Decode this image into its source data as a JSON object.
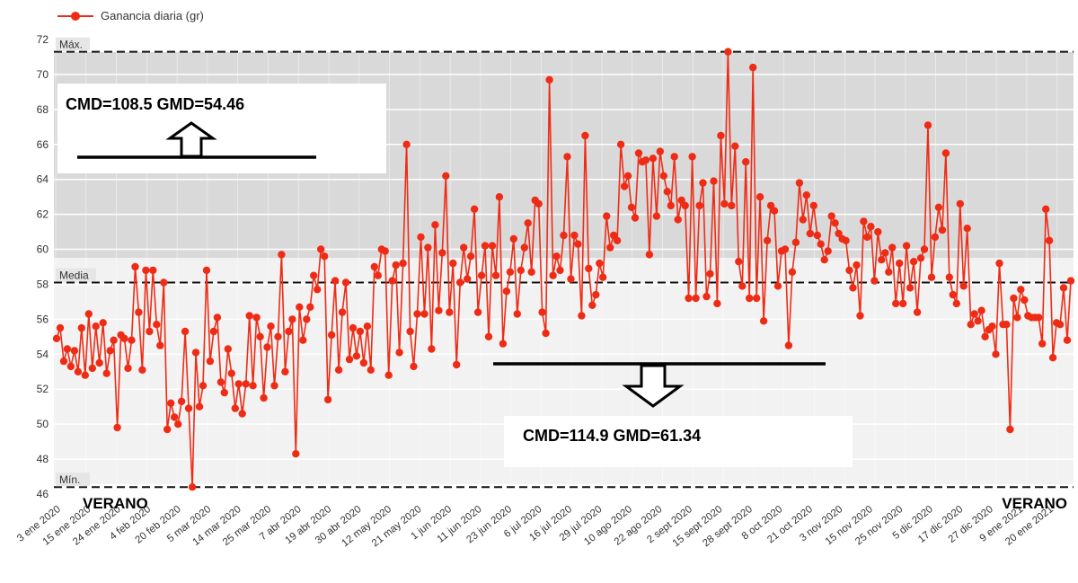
{
  "chart_data": {
    "type": "line",
    "legend": "Ganancia diaria (gr)",
    "legend_position": "top-left",
    "grid": true,
    "ylim": [
      46,
      72
    ],
    "yticks": [
      46,
      48,
      50,
      52,
      54,
      56,
      58,
      60,
      62,
      64,
      66,
      68,
      70,
      72
    ],
    "x_tick_labels": [
      "3 ene 2020",
      "15 ene 2020",
      "24 ene 2020",
      "4 feb 2020",
      "20 feb 2020",
      "5 mar 2020",
      "14 mar 2020",
      "25 mar 2020",
      "7 abr 2020",
      "19 abr 2020",
      "30 abr 2020",
      "12 may 2020",
      "21 may 2020",
      "1 jun 2020",
      "11 jun 2020",
      "23 jun 2020",
      "6 jul 2020",
      "16 jul 2020",
      "29 jul 2020",
      "10 ago 2020",
      "22 ago 2020",
      "2 sept 2020",
      "15 sept 2020",
      "28 sept 2020",
      "8 oct 2020",
      "21 oct 2020",
      "3 nov 2020",
      "15 nov 2020",
      "25 nov 2020",
      "5 dic 2020",
      "17 dic 2020",
      "27 dic 2020",
      "9 ene 2021",
      "20 ene 2021"
    ],
    "reference_lines": [
      {
        "label": "Máx.",
        "value": 71.3
      },
      {
        "label": "Media",
        "value": 58.1
      },
      {
        "label": "Mín.",
        "value": 46.4
      }
    ],
    "series": [
      {
        "name": "Ganancia diaria (gr)",
        "color": "#ee2c16",
        "values": [
          54.9,
          55.5,
          53.6,
          54.3,
          53.3,
          54.2,
          53.0,
          55.5,
          52.8,
          56.3,
          53.2,
          55.6,
          53.5,
          55.8,
          52.9,
          54.2,
          54.8,
          49.8,
          55.1,
          54.9,
          53.2,
          54.8,
          59.0,
          56.4,
          53.1,
          58.8,
          55.3,
          58.8,
          55.7,
          54.5,
          58.1,
          49.7,
          51.2,
          50.4,
          50.0,
          51.3,
          55.3,
          50.9,
          46.4,
          54.1,
          51.0,
          52.2,
          58.8,
          53.6,
          55.3,
          56.1,
          52.4,
          51.8,
          54.3,
          52.9,
          50.9,
          52.3,
          50.6,
          52.3,
          56.2,
          52.2,
          56.1,
          55.0,
          51.5,
          54.4,
          55.6,
          52.2,
          55.0,
          59.7,
          53.0,
          55.3,
          56.0,
          48.3,
          56.7,
          54.8,
          56.0,
          56.7,
          58.5,
          57.7,
          60.0,
          59.6,
          51.4,
          55.1,
          58.2,
          53.1,
          56.4,
          58.1,
          53.7,
          55.5,
          53.9,
          55.3,
          53.5,
          55.6,
          53.1,
          59.0,
          58.5,
          60.0,
          59.9,
          52.8,
          58.2,
          59.1,
          54.1,
          59.2,
          66.0,
          55.3,
          53.3,
          56.3,
          60.7,
          56.3,
          60.1,
          54.3,
          61.4,
          56.5,
          59.8,
          64.2,
          56.4,
          59.2,
          53.4,
          58.1,
          60.1,
          58.3,
          59.6,
          62.3,
          56.4,
          58.5,
          60.2,
          55.0,
          60.2,
          58.5,
          63.0,
          54.6,
          57.6,
          58.7,
          60.6,
          56.3,
          58.8,
          60.1,
          61.5,
          58.7,
          62.8,
          62.6,
          56.4,
          55.2,
          69.7,
          58.5,
          59.6,
          58.8,
          60.8,
          65.3,
          58.3,
          60.8,
          60.3,
          56.2,
          66.5,
          58.9,
          56.8,
          57.4,
          59.2,
          58.4,
          61.9,
          60.1,
          60.8,
          60.5,
          66.0,
          63.6,
          64.2,
          62.4,
          61.8,
          65.5,
          65.0,
          65.1,
          59.7,
          65.2,
          61.9,
          65.6,
          64.2,
          63.3,
          62.5,
          65.3,
          61.7,
          62.8,
          62.5,
          57.2,
          65.3,
          57.2,
          62.5,
          63.8,
          57.3,
          58.6,
          63.9,
          56.9,
          66.5,
          62.6,
          71.3,
          62.5,
          65.9,
          59.3,
          57.9,
          65.0,
          57.2,
          70.4,
          57.2,
          63.0,
          55.9,
          60.5,
          62.5,
          62.2,
          57.9,
          59.9,
          60.0,
          54.5,
          58.7,
          60.4,
          63.8,
          61.7,
          63.1,
          60.9,
          62.5,
          60.8,
          60.3,
          59.4,
          59.9,
          61.9,
          61.5,
          60.9,
          60.6,
          60.5,
          58.8,
          57.8,
          59.1,
          56.2,
          61.6,
          60.7,
          61.3,
          58.2,
          61.0,
          59.4,
          59.8,
          58.7,
          60.1,
          56.9,
          59.2,
          56.9,
          60.2,
          57.8,
          59.3,
          56.4,
          59.5,
          60.0,
          67.1,
          58.4,
          60.7,
          62.4,
          61.1,
          65.5,
          58.4,
          57.4,
          56.9,
          62.6,
          57.9,
          61.2,
          55.7,
          56.3,
          55.9,
          56.5,
          55.0,
          55.4,
          55.6,
          54.0,
          59.2,
          55.7,
          55.7,
          49.7,
          57.2,
          56.1,
          57.7,
          57.1,
          56.2,
          56.1,
          56.1,
          56.1,
          54.6,
          62.3,
          60.5,
          53.8,
          55.8,
          55.7,
          57.8,
          54.8,
          58.2
        ]
      }
    ],
    "annotations": [
      {
        "text": "CMD=108.5  GMD=54.46",
        "arrow": "up"
      },
      {
        "text": "CMD=114.9  GMD=61.34",
        "arrow": "down"
      },
      {
        "text": "VERANO",
        "position": "bottom-left"
      },
      {
        "text": "VERANO",
        "position": "bottom-right"
      }
    ]
  }
}
